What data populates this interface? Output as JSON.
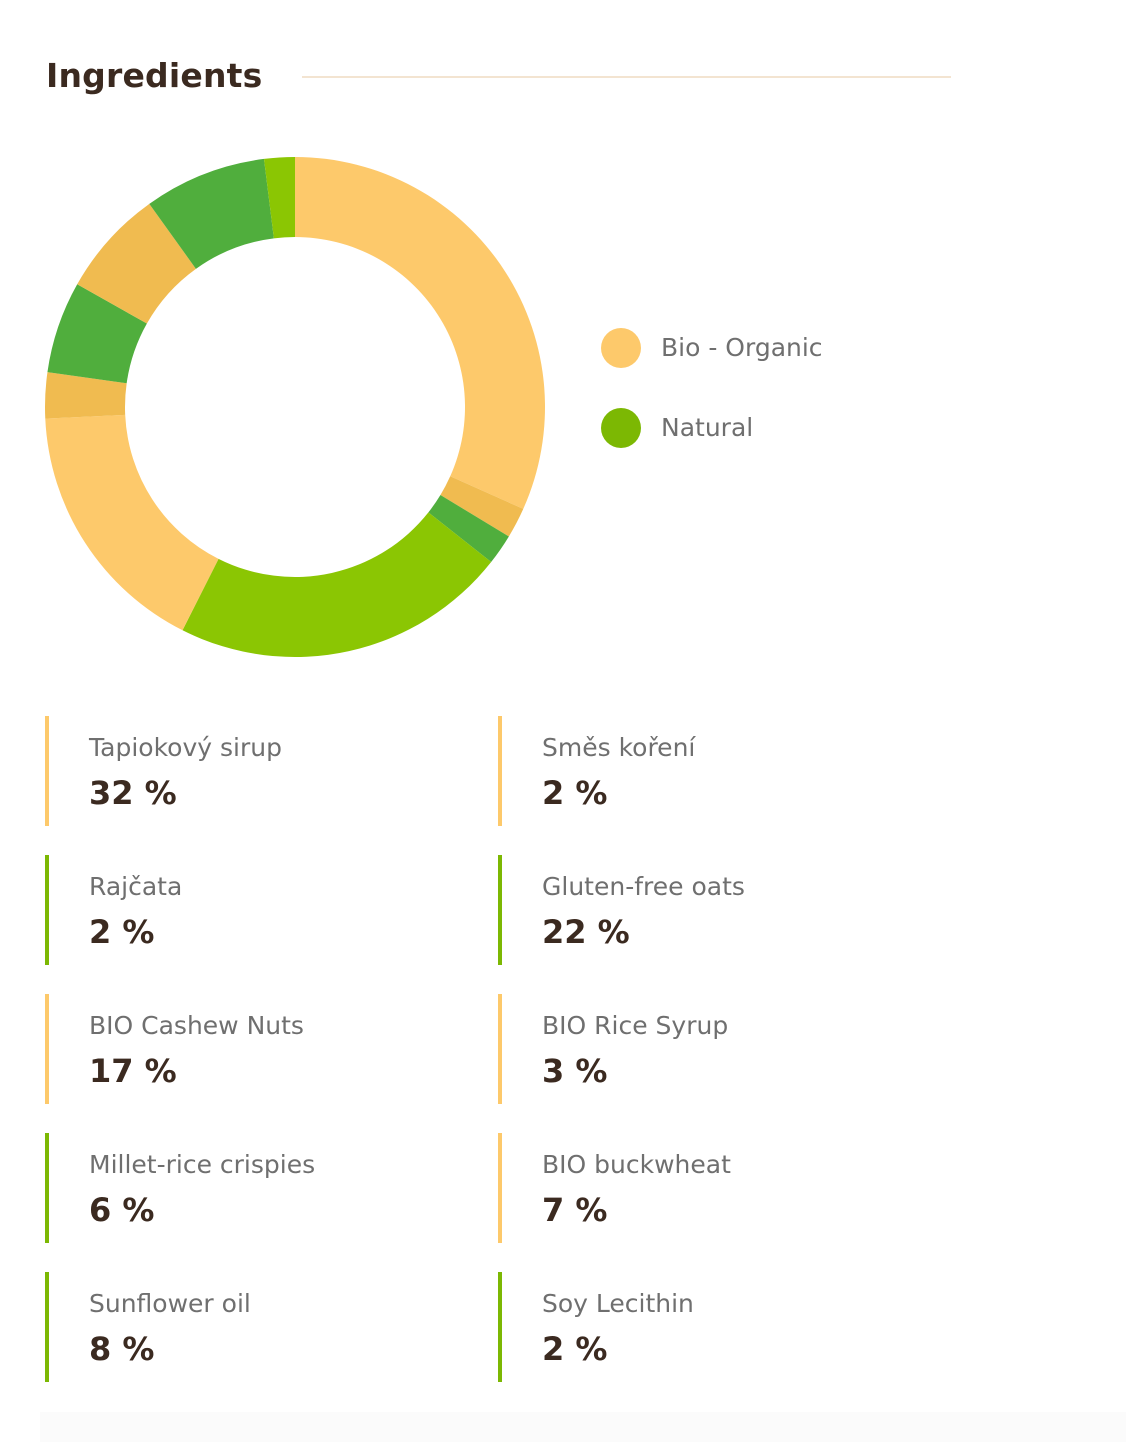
{
  "section": {
    "title": "Ingredients"
  },
  "colors": {
    "organic": "#fdc96b",
    "organic_alt": "#f0bb50",
    "natural": "#8bc603",
    "natural_alt": "#50ae3d",
    "legend_natural": "#7cb803",
    "title_text": "#3b2a20",
    "label_text": "#6f6f6f",
    "rule": "#f3e4d1"
  },
  "legend": [
    {
      "label": "Bio - Organic",
      "color": "#fdc96b"
    },
    {
      "label": "Natural",
      "color": "#7cb803"
    }
  ],
  "chart_data": {
    "type": "pie",
    "donut": true,
    "legend_position": "right",
    "series": [
      {
        "name": "Bio - Organic",
        "category_color": "#fdc96b"
      },
      {
        "name": "Natural",
        "category_color": "#7cb803"
      }
    ],
    "slices": [
      {
        "label": "Tapiokový sirup",
        "value": 32,
        "group": "Bio - Organic",
        "color": "#fdc96b"
      },
      {
        "label": "Směs koření",
        "value": 2,
        "group": "Bio - Organic",
        "color": "#f0bb50"
      },
      {
        "label": "Rajčata",
        "value": 2,
        "group": "Natural",
        "color": "#50ae3d"
      },
      {
        "label": "Gluten-free oats",
        "value": 22,
        "group": "Natural",
        "color": "#8bc603"
      },
      {
        "label": "BIO Cashew Nuts",
        "value": 17,
        "group": "Bio - Organic",
        "color": "#fdc96b"
      },
      {
        "label": "BIO Rice Syrup",
        "value": 3,
        "group": "Bio - Organic",
        "color": "#f0bb50"
      },
      {
        "label": "Millet-rice crispies",
        "value": 6,
        "group": "Natural",
        "color": "#50ae3d"
      },
      {
        "label": "BIO buckwheat",
        "value": 7,
        "group": "Bio - Organic",
        "color": "#f0bb50"
      },
      {
        "label": "Sunflower oil",
        "value": 8,
        "group": "Natural",
        "color": "#50ae3d"
      },
      {
        "label": "Soy Lecithin",
        "value": 2,
        "group": "Natural",
        "color": "#8bc603"
      }
    ]
  },
  "ingredients": [
    {
      "name": "Tapiokový sirup",
      "value": "32 %",
      "color": "#fdc96b"
    },
    {
      "name": "Směs koření",
      "value": "2 %",
      "color": "#fdc96b"
    },
    {
      "name": "Rajčata",
      "value": "2 %",
      "color": "#7cb803"
    },
    {
      "name": "Gluten-free oats",
      "value": "22 %",
      "color": "#7cb803"
    },
    {
      "name": "BIO Cashew Nuts",
      "value": "17 %",
      "color": "#fdc96b"
    },
    {
      "name": "BIO Rice Syrup",
      "value": "3 %",
      "color": "#fdc96b"
    },
    {
      "name": "Millet-rice crispies",
      "value": "6 %",
      "color": "#7cb803"
    },
    {
      "name": "BIO buckwheat",
      "value": "7 %",
      "color": "#fdc96b"
    },
    {
      "name": "Sunflower oil",
      "value": "8 %",
      "color": "#7cb803"
    },
    {
      "name": "Soy Lecithin",
      "value": "2 %",
      "color": "#7cb803"
    }
  ]
}
